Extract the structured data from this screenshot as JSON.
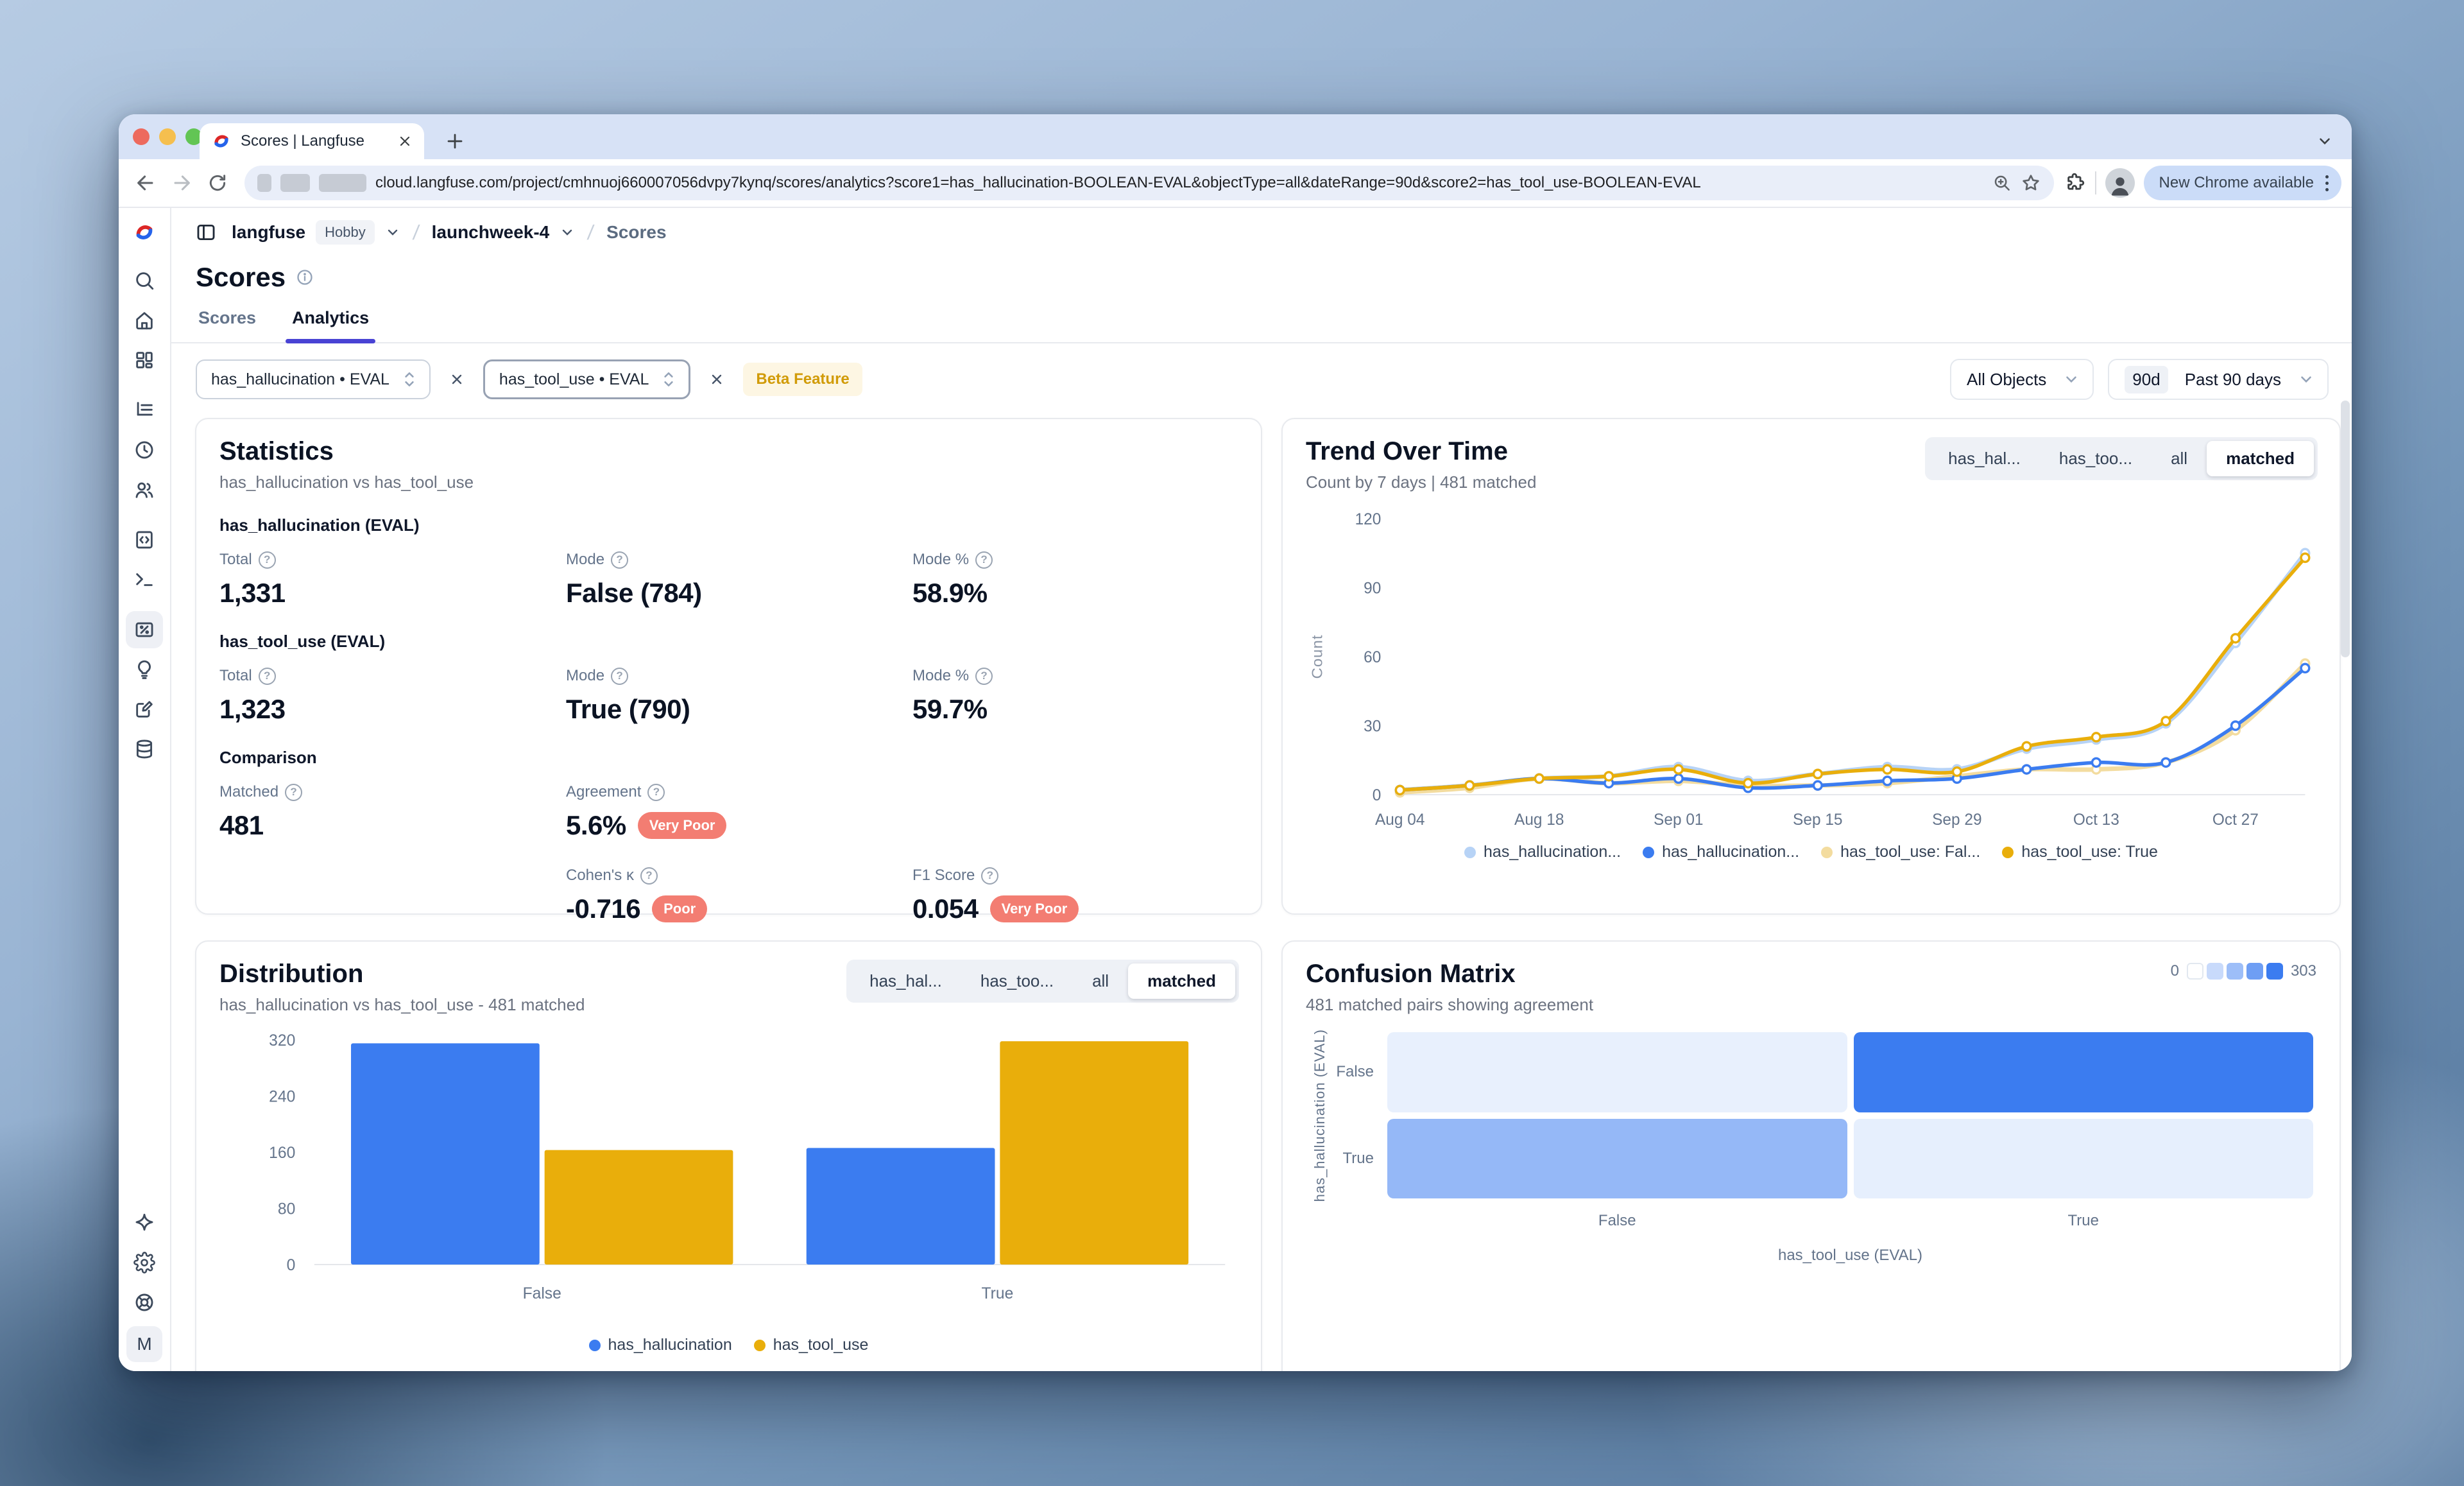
{
  "ui_colors": {
    "accent": "#4943d4",
    "blue": "#3b7cf0",
    "light_blue": "#b7d3f6",
    "gold": "#e9ae0b",
    "cream": "#f3dc9f",
    "negative_badge": "#f37d72",
    "beta_badge_bg": "#fdf6e3",
    "beta_badge_text": "#d19b08"
  },
  "browser": {
    "tab_title": "Scores | Langfuse",
    "url": "cloud.langfuse.com/project/cmhnuoj660007056dvpy7kynq/scores/analytics?score1=has_hallucination-BOOLEAN-EVAL&objectType=all&dateRange=90d&score2=has_tool_use-BOOLEAN-EVAL",
    "update_pill": "New Chrome available"
  },
  "breadcrumb": {
    "org": "langfuse",
    "plan": "Hobby",
    "project": "launchweek-4",
    "page": "Scores"
  },
  "page": {
    "title": "Scores",
    "tabs": {
      "scores": "Scores",
      "analytics": "Analytics"
    }
  },
  "view_tabs": [
    "has_hal...",
    "has_too...",
    "all",
    "matched"
  ],
  "filters": {
    "score1": "has_hallucination • EVAL",
    "score2": "has_tool_use • EVAL",
    "beta": "Beta Feature",
    "objects": "All Objects",
    "date_badge": "90d",
    "date_label": "Past 90 days"
  },
  "statistics": {
    "title": "Statistics",
    "subtitle": "has_hallucination vs has_tool_use",
    "sections": [
      {
        "heading": "has_hallucination (EVAL)",
        "metrics": [
          {
            "label": "Total",
            "value": "1,331"
          },
          {
            "label": "Mode",
            "value": "False (784)"
          },
          {
            "label": "Mode %",
            "value": "58.9%"
          }
        ]
      },
      {
        "heading": "has_tool_use (EVAL)",
        "metrics": [
          {
            "label": "Total",
            "value": "1,323"
          },
          {
            "label": "Mode",
            "value": "True (790)"
          },
          {
            "label": "Mode %",
            "value": "59.7%"
          }
        ]
      },
      {
        "heading": "Comparison",
        "metrics": [
          {
            "label": "Matched",
            "value": "481"
          },
          {
            "label": "Agreement",
            "value": "5.6%",
            "badge": "Very Poor"
          },
          {
            "label": "Cohen's κ",
            "value": "-0.716",
            "badge": "Poor"
          },
          {
            "label": "F1 Score",
            "value": "0.054",
            "badge": "Very Poor"
          }
        ]
      }
    ]
  },
  "trend": {
    "title": "Trend Over Time",
    "subtitle": "Count by 7 days | 481 matched"
  },
  "distribution": {
    "title": "Distribution",
    "subtitle": "has_hallucination vs has_tool_use - 481 matched"
  },
  "confusion": {
    "title": "Confusion Matrix",
    "subtitle": "481 matched pairs showing agreement",
    "scale_min": "0",
    "scale_max": "303",
    "xlabel": "has_tool_use (EVAL)",
    "ylabel": "has_hallucination (EVAL)",
    "row_labels": [
      "False",
      "True"
    ],
    "col_labels": [
      "False",
      "True"
    ]
  },
  "sidebar": {
    "items": [
      "search",
      "home",
      "dashboards",
      "tracing",
      "sessions",
      "users",
      "prompts",
      "playground",
      "scores",
      "evaluators",
      "annotation-queues",
      "datasets"
    ],
    "active": "scores",
    "bottom": [
      "ask-ai",
      "settings",
      "support"
    ],
    "avatar": "M"
  },
  "chart_data": [
    {
      "id": "trend",
      "type": "line",
      "title": "Trend Over Time",
      "x": [
        "Aug 04",
        "Aug 11",
        "Aug 18",
        "Aug 25",
        "Sep 01",
        "Sep 08",
        "Sep 15",
        "Sep 22",
        "Sep 29",
        "Oct 06",
        "Oct 13",
        "Oct 20",
        "Oct 27",
        "Nov 03"
      ],
      "x_tick_labels": [
        "Aug 04",
        "Aug 18",
        "Sep 01",
        "Sep 15",
        "Sep 29",
        "Oct 13",
        "Oct 27"
      ],
      "series": [
        {
          "name": "has_hallucination: False",
          "legend": "has_hallucination...",
          "color": "#b7d3f6",
          "muted": true,
          "values": [
            2,
            4,
            7,
            8,
            12,
            6,
            9,
            12,
            11,
            20,
            24,
            31,
            66,
            105
          ]
        },
        {
          "name": "has_hallucination: True",
          "legend": "has_hallucination...",
          "color": "#3b7cf0",
          "muted": false,
          "values": [
            2,
            4,
            7,
            5,
            7,
            3,
            4,
            6,
            7,
            11,
            14,
            14,
            30,
            55
          ]
        },
        {
          "name": "has_tool_use: False",
          "legend": "has_tool_use: Fal...",
          "color": "#f3dc9f",
          "muted": true,
          "values": [
            1,
            3,
            7,
            5,
            6,
            4,
            4,
            5,
            8,
            11,
            11,
            14,
            28,
            57
          ]
        },
        {
          "name": "has_tool_use: True",
          "legend": "has_tool_use: True",
          "color": "#e9ae0b",
          "muted": false,
          "values": [
            2,
            4,
            7,
            8,
            11,
            5,
            9,
            11,
            10,
            21,
            25,
            32,
            68,
            103
          ]
        }
      ],
      "ylabel": "Count",
      "ylim": [
        0,
        120
      ],
      "yticks": [
        0,
        30,
        60,
        90,
        120
      ],
      "grid": false,
      "legend_position": "bottom"
    },
    {
      "id": "distribution",
      "type": "bar",
      "title": "Distribution",
      "categories": [
        "False",
        "True"
      ],
      "series": [
        {
          "name": "has_hallucination",
          "color": "#3b7cf0",
          "values": [
            315,
            166
          ]
        },
        {
          "name": "has_tool_use",
          "color": "#e9ae0b",
          "values": [
            163,
            318
          ]
        }
      ],
      "ylim": [
        0,
        340
      ],
      "yticks": [
        0,
        80,
        160,
        240,
        320
      ],
      "grid": false,
      "legend_position": "bottom"
    },
    {
      "id": "confusion",
      "type": "heatmap",
      "title": "Confusion Matrix",
      "rows": [
        "False",
        "True"
      ],
      "cols": [
        "False",
        "True"
      ],
      "values": [
        [
          12,
          303
        ],
        [
          151,
          15
        ]
      ],
      "xlabel": "has_tool_use (EVAL)",
      "ylabel": "has_hallucination (EVAL)",
      "scale": {
        "min": 0,
        "max": 303,
        "colors": [
          "#ffffff",
          "#3b7cf0"
        ]
      }
    }
  ]
}
